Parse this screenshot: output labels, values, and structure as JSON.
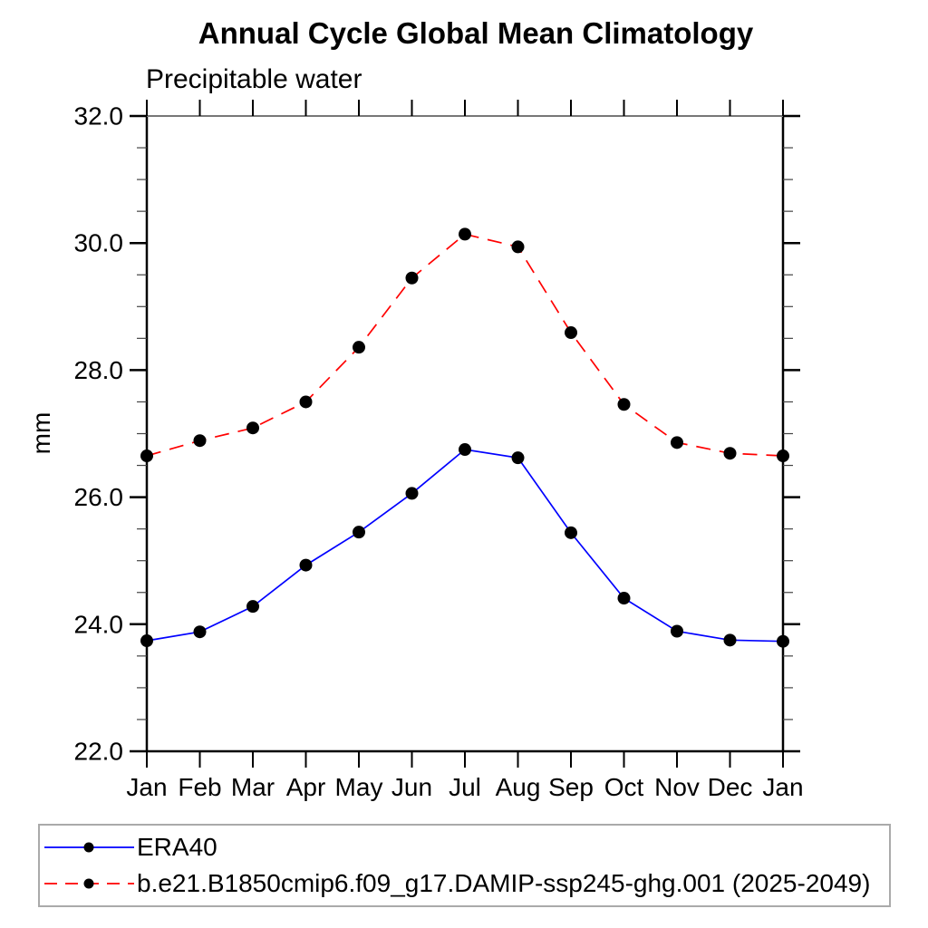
{
  "page": {
    "title": "Annual Cycle Global Mean Climatology",
    "subtitle": "Precipitable water",
    "y_axis_title": "mm"
  },
  "chart_data": {
    "type": "line",
    "title": "Annual Cycle Global Mean Climatology",
    "subtitle": "Precipitable water",
    "xlabel": "",
    "ylabel": "mm",
    "x_categories": [
      "Jan",
      "Feb",
      "Mar",
      "Apr",
      "May",
      "Jun",
      "Jul",
      "Aug",
      "Sep",
      "Oct",
      "Nov",
      "Dec",
      "Jan"
    ],
    "ylim": [
      22.0,
      32.0
    ],
    "y_major_step": 2.0,
    "y_minor_step": 0.5,
    "y_major_labels": [
      "22.0",
      "24.0",
      "26.0",
      "28.0",
      "30.0",
      "32.0"
    ],
    "grid": false,
    "legend_position": "bottom-left-box",
    "marker": "filled-circle",
    "marker_color": "#000000",
    "series": [
      {
        "name": "ERA40",
        "color": "#0000ff",
        "line_style": "solid",
        "values": [
          23.74,
          23.88,
          24.28,
          24.93,
          25.45,
          26.06,
          26.75,
          26.62,
          25.44,
          24.41,
          23.89,
          23.75,
          23.73
        ]
      },
      {
        "name": "b.e21.B1850cmip6.f09_g17.DAMIP-ssp245-ghg.001 (2025-2049)",
        "color": "#ff0000",
        "line_style": "dashed",
        "values": [
          26.65,
          26.89,
          27.09,
          27.5,
          28.36,
          29.45,
          30.14,
          29.94,
          28.59,
          27.46,
          26.86,
          26.69,
          26.65
        ]
      }
    ]
  },
  "colors": {
    "background": "#ffffff",
    "axis_frame": "#000000",
    "top_axis": "#777777",
    "minor_tick": "#444444",
    "marker": "#000000",
    "series_era40": "#0000ff",
    "series_damip": "#ff0000",
    "legend_border": "#aaaaaa",
    "text": "#000000"
  }
}
